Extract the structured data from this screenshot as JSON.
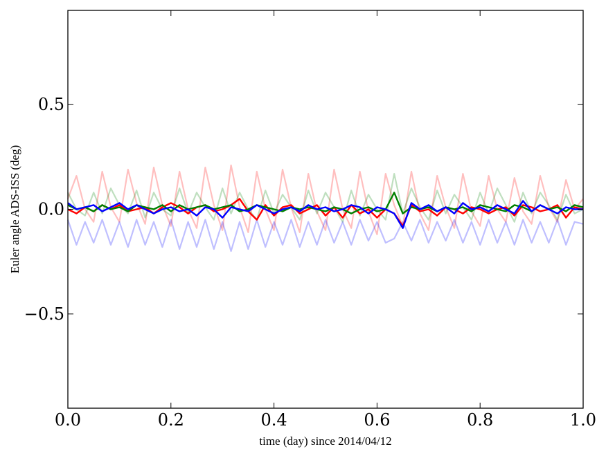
{
  "chart_data": {
    "type": "line",
    "title": "",
    "xlabel": "time (day) since 2014/04/12",
    "ylabel": "Euler angle ADS-ISS (deg)",
    "xlim": [
      0.0,
      1.0
    ],
    "ylim": [
      -0.95,
      0.95
    ],
    "xticks": [
      0.0,
      0.2,
      0.4,
      0.6,
      0.8,
      1.0
    ],
    "xtick_labels": [
      "0.0",
      "0.2",
      "0.4",
      "0.6",
      "0.8",
      "1.0"
    ],
    "yticks": [
      -0.5,
      0.0,
      0.5
    ],
    "ytick_labels": [
      "−0.5",
      "0.0",
      "0.5"
    ],
    "grid": false,
    "legend": "none",
    "x": [
      0.0,
      0.0167,
      0.0333,
      0.05,
      0.0667,
      0.0833,
      0.1,
      0.1167,
      0.1333,
      0.15,
      0.1667,
      0.1833,
      0.2,
      0.2167,
      0.2333,
      0.25,
      0.2667,
      0.2833,
      0.3,
      0.3167,
      0.3333,
      0.35,
      0.3667,
      0.3833,
      0.4,
      0.4167,
      0.4333,
      0.45,
      0.4667,
      0.4833,
      0.5,
      0.5167,
      0.5333,
      0.55,
      0.5667,
      0.5833,
      0.6,
      0.6167,
      0.6333,
      0.65,
      0.6667,
      0.6833,
      0.7,
      0.7167,
      0.7333,
      0.75,
      0.7667,
      0.7833,
      0.8,
      0.8167,
      0.8333,
      0.85,
      0.8667,
      0.8833,
      0.9,
      0.9167,
      0.9333,
      0.95,
      0.9667,
      0.9833,
      1.0
    ],
    "series": [
      {
        "color": "#ff0000",
        "opacity": 0.25,
        "values": [
          0.05,
          0.16,
          0.0,
          -0.06,
          0.18,
          0.01,
          -0.06,
          0.19,
          0.03,
          -0.07,
          0.2,
          0.02,
          -0.08,
          0.18,
          0.0,
          -0.09,
          0.2,
          0.02,
          -0.1,
          0.21,
          0.01,
          -0.11,
          0.18,
          0.0,
          -0.1,
          0.19,
          0.01,
          -0.11,
          0.17,
          -0.01,
          -0.1,
          0.19,
          0.0,
          -0.09,
          0.18,
          -0.01,
          -0.12,
          0.17,
          0.02,
          -0.08,
          0.18,
          -0.02,
          -0.1,
          0.16,
          0.01,
          -0.09,
          0.17,
          -0.01,
          -0.08,
          0.16,
          0.0,
          -0.06,
          0.15,
          -0.01,
          -0.07,
          0.16,
          0.01,
          -0.06,
          0.14,
          0.0,
          0.05
        ]
      },
      {
        "color": "#008000",
        "opacity": 0.25,
        "values": [
          0.08,
          0.0,
          -0.03,
          0.08,
          -0.02,
          0.1,
          0.02,
          -0.02,
          0.09,
          -0.04,
          0.08,
          0.0,
          -0.03,
          0.1,
          -0.02,
          0.08,
          0.01,
          -0.05,
          0.1,
          -0.02,
          0.08,
          0.0,
          -0.05,
          0.09,
          -0.02,
          0.07,
          0.01,
          -0.05,
          0.09,
          -0.02,
          0.08,
          0.01,
          -0.06,
          0.09,
          -0.03,
          0.07,
          0.0,
          -0.05,
          0.17,
          -0.02,
          0.1,
          0.01,
          -0.05,
          0.09,
          -0.02,
          0.07,
          0.01,
          -0.05,
          0.08,
          -0.02,
          0.1,
          0.02,
          -0.06,
          0.08,
          -0.02,
          0.08,
          0.02,
          -0.05,
          0.07,
          -0.02,
          0.0
        ]
      },
      {
        "color": "#0000ff",
        "opacity": 0.25,
        "values": [
          -0.05,
          -0.17,
          -0.06,
          -0.16,
          -0.05,
          -0.17,
          -0.06,
          -0.18,
          -0.05,
          -0.17,
          -0.06,
          -0.18,
          -0.05,
          -0.19,
          -0.06,
          -0.18,
          -0.05,
          -0.19,
          -0.06,
          -0.2,
          -0.06,
          -0.19,
          -0.05,
          -0.18,
          -0.06,
          -0.17,
          -0.05,
          -0.18,
          -0.06,
          -0.17,
          -0.05,
          -0.16,
          -0.06,
          -0.17,
          -0.05,
          -0.15,
          -0.06,
          -0.16,
          -0.14,
          -0.06,
          -0.15,
          -0.05,
          -0.16,
          -0.06,
          -0.15,
          -0.05,
          -0.16,
          -0.06,
          -0.17,
          -0.05,
          -0.16,
          -0.06,
          -0.17,
          -0.05,
          -0.16,
          -0.06,
          -0.16,
          -0.05,
          -0.17,
          -0.06,
          -0.07
        ]
      },
      {
        "color": "#ff0000",
        "opacity": 1.0,
        "values": [
          0.0,
          -0.02,
          0.01,
          -0.01,
          0.02,
          0.0,
          0.02,
          -0.01,
          0.0,
          0.01,
          -0.02,
          0.01,
          0.03,
          0.01,
          -0.02,
          0.01,
          0.02,
          -0.01,
          0.0,
          0.02,
          0.05,
          -0.01,
          -0.05,
          0.02,
          -0.03,
          0.01,
          0.02,
          -0.02,
          0.0,
          0.02,
          -0.03,
          0.01,
          -0.04,
          0.02,
          -0.02,
          0.0,
          -0.04,
          0.0,
          -0.02,
          -0.08,
          0.02,
          -0.01,
          0.0,
          -0.03,
          0.01,
          0.0,
          -0.02,
          0.01,
          0.0,
          -0.02,
          0.0,
          0.01,
          -0.03,
          0.02,
          0.01,
          -0.01,
          0.0,
          0.02,
          -0.04,
          0.01,
          0.0
        ]
      },
      {
        "color": "#008000",
        "opacity": 1.0,
        "values": [
          0.02,
          0.0,
          0.01,
          -0.01,
          0.02,
          0.0,
          0.01,
          -0.01,
          0.02,
          0.01,
          0.0,
          0.02,
          -0.01,
          0.02,
          0.0,
          0.01,
          0.02,
          0.0,
          0.01,
          0.02,
          -0.01,
          0.0,
          0.02,
          0.01,
          0.0,
          -0.01,
          0.01,
          0.0,
          0.01,
          0.0,
          -0.01,
          0.01,
          0.0,
          -0.02,
          0.0,
          0.01,
          -0.01,
          0.0,
          0.08,
          -0.02,
          0.01,
          0.0,
          0.01,
          -0.01,
          0.01,
          0.0,
          0.01,
          -0.01,
          0.02,
          0.01,
          0.0,
          -0.01,
          0.02,
          0.01,
          -0.01,
          0.02,
          0.0,
          0.01,
          -0.01,
          0.02,
          0.01
        ]
      },
      {
        "color": "#0000ff",
        "opacity": 1.0,
        "values": [
          0.03,
          0.0,
          0.01,
          0.02,
          -0.01,
          0.01,
          0.03,
          0.0,
          0.02,
          0.0,
          -0.02,
          0.0,
          0.01,
          -0.01,
          0.0,
          -0.03,
          0.01,
          0.0,
          -0.04,
          0.01,
          0.0,
          -0.01,
          0.02,
          0.0,
          -0.02,
          0.0,
          0.01,
          -0.01,
          0.02,
          0.0,
          0.01,
          -0.01,
          0.0,
          0.02,
          0.01,
          -0.02,
          0.01,
          0.0,
          -0.02,
          -0.09,
          0.03,
          0.0,
          0.02,
          -0.01,
          0.01,
          -0.02,
          0.03,
          0.0,
          0.01,
          -0.01,
          0.02,
          0.0,
          -0.02,
          0.04,
          -0.01,
          0.02,
          0.0,
          -0.02,
          0.01,
          0.0,
          0.0
        ]
      }
    ]
  }
}
